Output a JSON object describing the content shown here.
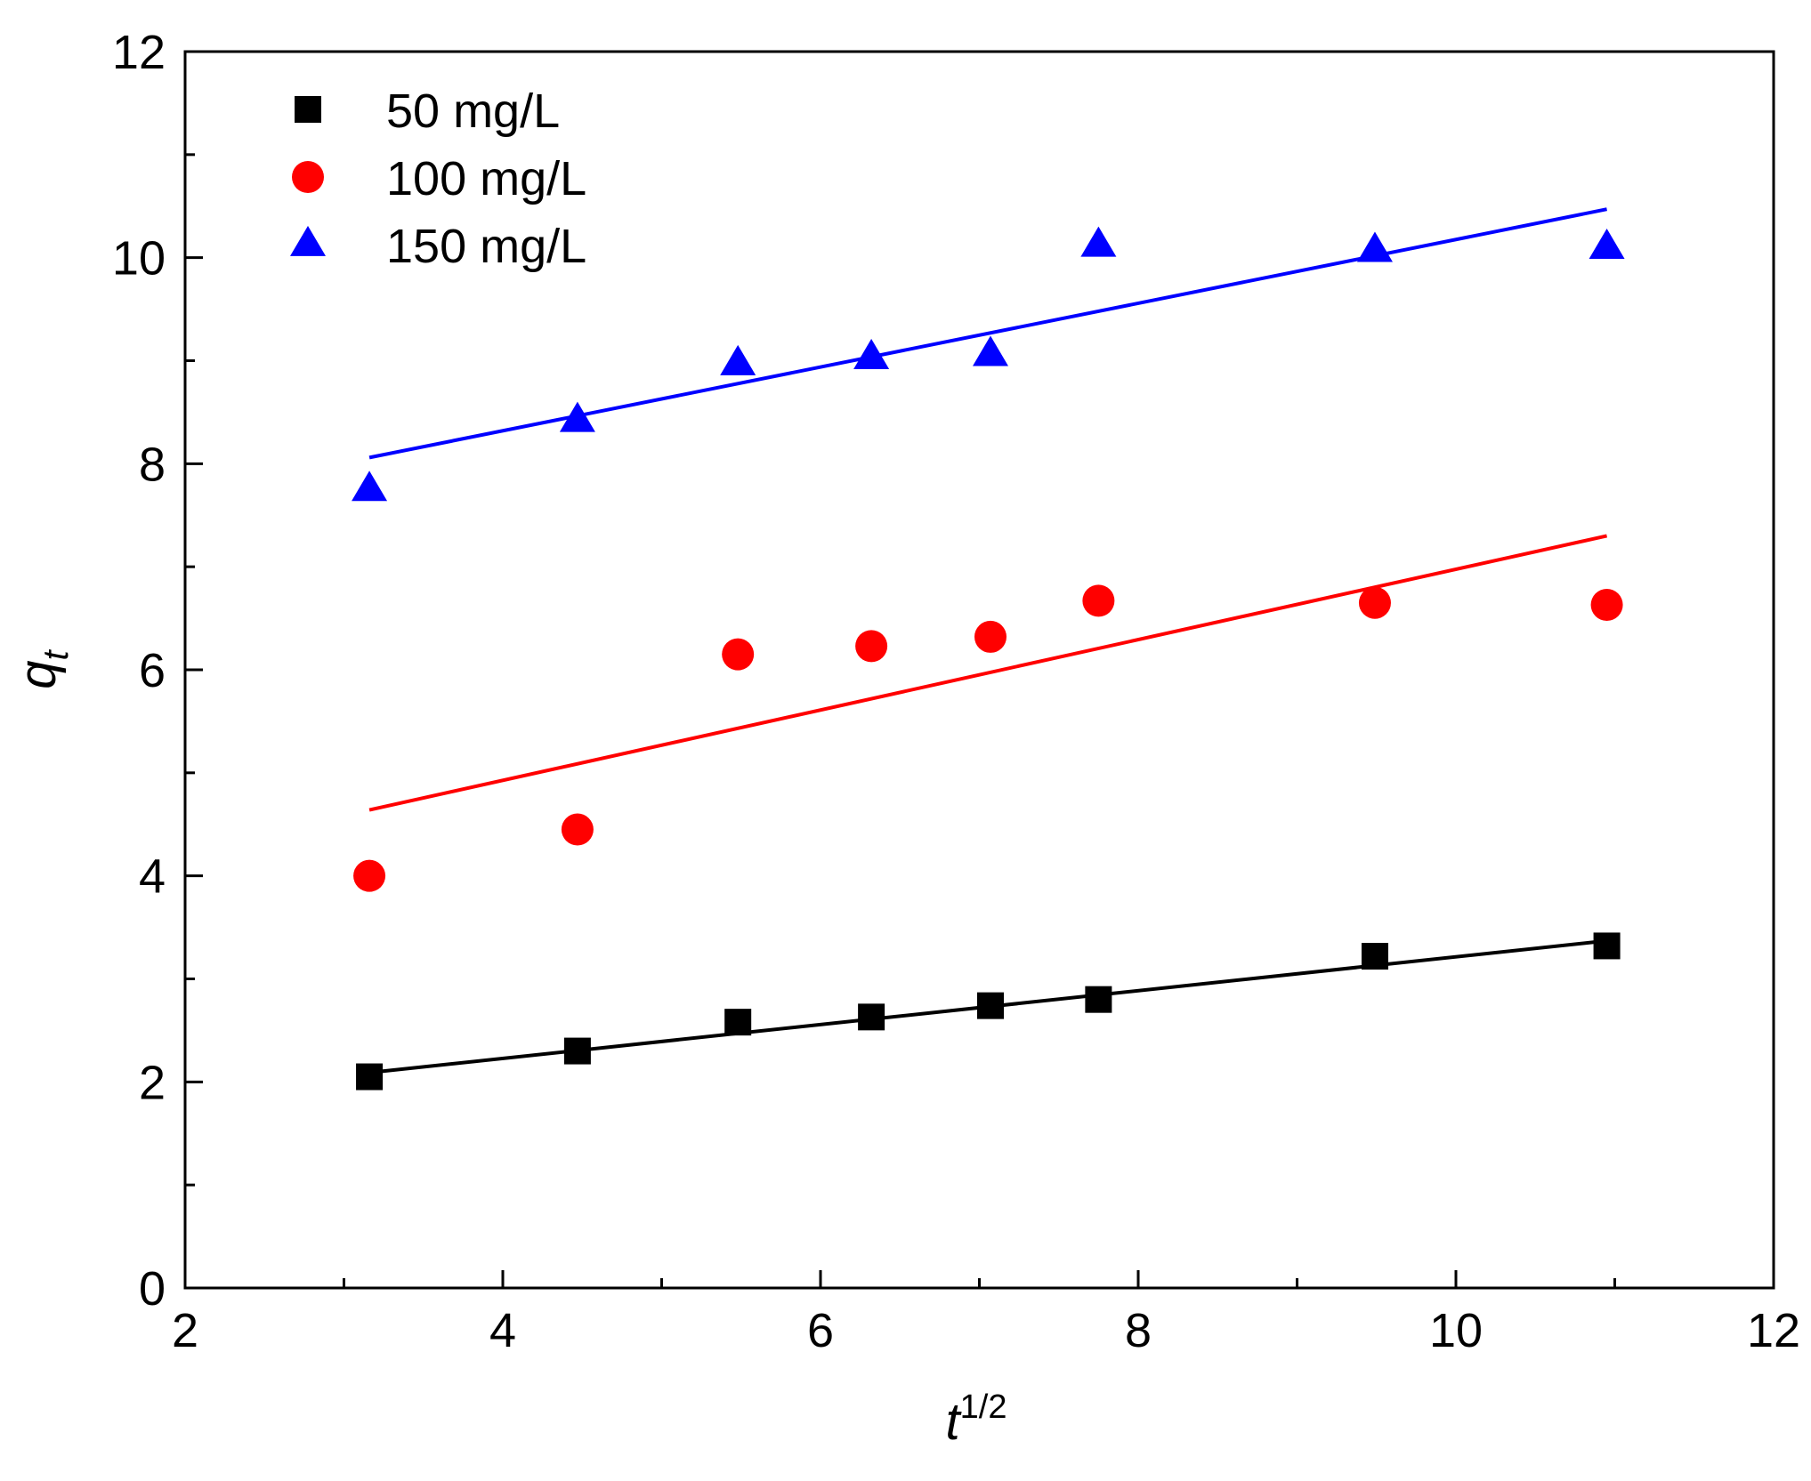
{
  "chart_data": {
    "type": "scatter",
    "xlabel": "t",
    "xlabel_superscript": "1/2",
    "ylabel": "q",
    "ylabel_subscript": "t",
    "xlim": [
      2,
      12
    ],
    "ylim": [
      0,
      12
    ],
    "x_major_ticks": [
      2,
      4,
      6,
      8,
      10,
      12
    ],
    "x_tick_labels": [
      "2",
      "4",
      "6",
      "8",
      "10",
      "12"
    ],
    "x_minor_ticks": [
      3,
      5,
      7,
      9,
      11
    ],
    "y_major_ticks": [
      0,
      2,
      4,
      6,
      8,
      10,
      12
    ],
    "y_tick_labels": [
      "0",
      "2",
      "4",
      "6",
      "8",
      "10",
      "12"
    ],
    "y_minor_ticks": [
      1,
      3,
      5,
      7,
      9,
      11
    ],
    "grid": false,
    "legend_position": "top-left",
    "series": [
      {
        "name": "50 mg/L",
        "color": "#000000",
        "marker": "square",
        "x": [
          3.16,
          4.47,
          5.48,
          6.32,
          7.07,
          7.75,
          9.49,
          10.95
        ],
        "y": [
          2.05,
          2.3,
          2.58,
          2.63,
          2.74,
          2.8,
          3.22,
          3.32
        ],
        "fit": {
          "x": [
            3.16,
            10.95
          ],
          "y": [
            2.09,
            3.37
          ]
        }
      },
      {
        "name": "100 mg/L",
        "color": "#ff0000",
        "marker": "circle",
        "x": [
          3.16,
          4.47,
          5.48,
          6.32,
          7.07,
          7.75,
          9.49,
          10.95
        ],
        "y": [
          4.0,
          4.45,
          6.15,
          6.23,
          6.32,
          6.67,
          6.65,
          6.63
        ],
        "fit": {
          "x": [
            3.16,
            10.95
          ],
          "y": [
            4.64,
            7.3
          ]
        }
      },
      {
        "name": "150 mg/L",
        "color": "#0000ff",
        "marker": "triangle",
        "x": [
          3.16,
          4.47,
          5.48,
          6.32,
          7.07,
          7.75,
          9.49,
          10.95
        ],
        "y": [
          7.75,
          8.42,
          8.97,
          9.03,
          9.06,
          10.12,
          10.07,
          10.1
        ],
        "fit": {
          "x": [
            3.16,
            10.95
          ],
          "y": [
            8.06,
            10.47
          ]
        }
      }
    ]
  }
}
